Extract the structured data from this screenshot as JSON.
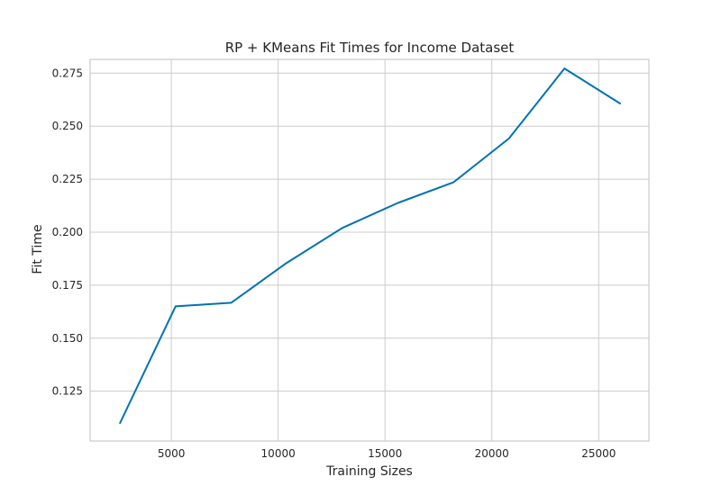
{
  "chart_data": {
    "type": "line",
    "title": "RP + KMeans Fit Times for Income Dataset",
    "xlabel": "Training Sizes",
    "ylabel": "Fit Time",
    "xlim": [
      1200,
      27350
    ],
    "ylim": [
      0.1015,
      0.2815
    ],
    "xticks": [
      5000,
      10000,
      15000,
      20000,
      25000
    ],
    "xtick_labels": [
      "5000",
      "10000",
      "15000",
      "20000",
      "25000"
    ],
    "yticks": [
      0.125,
      0.15,
      0.175,
      0.2,
      0.225,
      0.25,
      0.275
    ],
    "ytick_labels": [
      "0.125",
      "0.150",
      "0.175",
      "0.200",
      "0.225",
      "0.250",
      "0.275"
    ],
    "grid": true,
    "legend": "none",
    "series": [
      {
        "color": "#0072b2",
        "x": [
          2600,
          5200,
          7800,
          10400,
          13000,
          15600,
          18200,
          20800,
          23400,
          26000
        ],
        "y": [
          0.11,
          0.165,
          0.1667,
          0.1855,
          0.202,
          0.2138,
          0.2235,
          0.2442,
          0.2772,
          0.2607
        ]
      }
    ]
  }
}
